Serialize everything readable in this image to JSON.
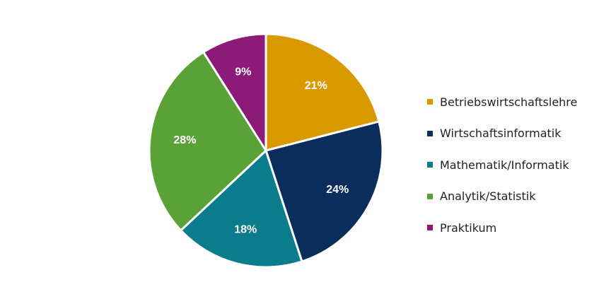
{
  "chart_data": {
    "type": "pie",
    "title": "",
    "slices": [
      {
        "label": "Betriebswirtschaftslehre",
        "value": 21,
        "value_label": "21%",
        "color": "#D99A00"
      },
      {
        "label": "Wirtschaftsinformatik",
        "value": 24,
        "value_label": "24%",
        "color": "#0B2D5B"
      },
      {
        "label": "Mathematik/Informatik",
        "value": 18,
        "value_label": "18%",
        "color": "#0A7C8C"
      },
      {
        "label": "Analytik/Statistik",
        "value": 28,
        "value_label": "28%",
        "color": "#5AA237"
      },
      {
        "label": "Praktikum",
        "value": 9,
        "value_label": "9%",
        "color": "#8C1A78"
      }
    ],
    "start_angle_deg": 0,
    "direction": "clockwise",
    "legend_position": "right"
  }
}
